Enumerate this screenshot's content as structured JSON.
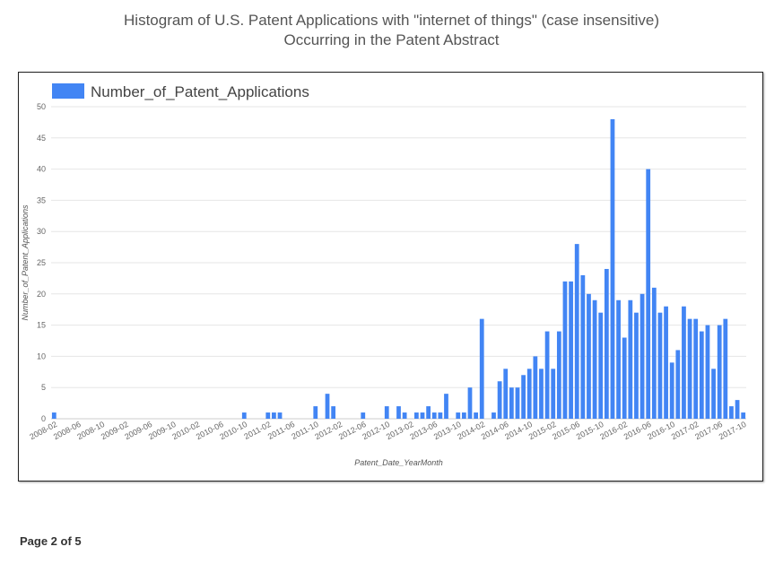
{
  "title": {
    "line1": "Histogram of U.S. Patent Applications with \"internet of things\" (case insensitive)",
    "line2": "Occurring in the Patent Abstract"
  },
  "footer": {
    "page_label": "Page 2 of 5"
  },
  "chart_data": {
    "type": "bar",
    "legend": [
      "Number_of_Patent_Applications"
    ],
    "legend_position": "top-left",
    "xlabel": "Patent_Date_YearMonth",
    "ylabel": "Number_of_Patent_Applications",
    "ylim": [
      0,
      50
    ],
    "yticks": [
      0,
      5,
      10,
      15,
      20,
      25,
      30,
      35,
      40,
      45,
      50
    ],
    "grid": true,
    "bar_color": "#4285f4",
    "categories": [
      "2008-02",
      "2008-03",
      "2008-04",
      "2008-05",
      "2008-06",
      "2008-07",
      "2008-08",
      "2008-09",
      "2008-10",
      "2008-11",
      "2008-12",
      "2009-01",
      "2009-02",
      "2009-03",
      "2009-04",
      "2009-05",
      "2009-06",
      "2009-07",
      "2009-08",
      "2009-09",
      "2009-10",
      "2009-11",
      "2009-12",
      "2010-01",
      "2010-02",
      "2010-03",
      "2010-04",
      "2010-05",
      "2010-06",
      "2010-07",
      "2010-08",
      "2010-09",
      "2010-10",
      "2010-11",
      "2010-12",
      "2011-01",
      "2011-02",
      "2011-03",
      "2011-04",
      "2011-05",
      "2011-06",
      "2011-07",
      "2011-08",
      "2011-09",
      "2011-10",
      "2011-11",
      "2011-12",
      "2012-01",
      "2012-02",
      "2012-03",
      "2012-04",
      "2012-05",
      "2012-06",
      "2012-07",
      "2012-08",
      "2012-09",
      "2012-10",
      "2012-11",
      "2012-12",
      "2013-01",
      "2013-02",
      "2013-03",
      "2013-04",
      "2013-05",
      "2013-06",
      "2013-07",
      "2013-08",
      "2013-09",
      "2013-10",
      "2013-11",
      "2013-12",
      "2014-01",
      "2014-02",
      "2014-03",
      "2014-04",
      "2014-05",
      "2014-06",
      "2014-07",
      "2014-08",
      "2014-09",
      "2014-10",
      "2014-11",
      "2014-12",
      "2015-01",
      "2015-02",
      "2015-03",
      "2015-04",
      "2015-05",
      "2015-06",
      "2015-07",
      "2015-08",
      "2015-09",
      "2015-10",
      "2015-11",
      "2015-12",
      "2016-01",
      "2016-02",
      "2016-03",
      "2016-04",
      "2016-05",
      "2016-06",
      "2016-07",
      "2016-08",
      "2016-09",
      "2016-10",
      "2016-11",
      "2016-12",
      "2017-01",
      "2017-02",
      "2017-03",
      "2017-04",
      "2017-05",
      "2017-06",
      "2017-07",
      "2017-08",
      "2017-09",
      "2017-10"
    ],
    "values": [
      1,
      0,
      0,
      0,
      0,
      0,
      0,
      0,
      0,
      0,
      0,
      0,
      0,
      0,
      0,
      0,
      0,
      0,
      0,
      0,
      0,
      0,
      0,
      0,
      0,
      0,
      0,
      0,
      0,
      0,
      0,
      0,
      1,
      0,
      0,
      0,
      1,
      1,
      1,
      0,
      0,
      0,
      0,
      0,
      2,
      0,
      4,
      2,
      0,
      0,
      0,
      0,
      1,
      0,
      0,
      0,
      2,
      0,
      2,
      1,
      0,
      1,
      1,
      2,
      1,
      1,
      4,
      0,
      1,
      1,
      5,
      1,
      16,
      0,
      1,
      6,
      8,
      5,
      5,
      7,
      8,
      10,
      8,
      14,
      8,
      14,
      22,
      22,
      28,
      23,
      20,
      19,
      17,
      24,
      48,
      19,
      13,
      19,
      17,
      20,
      40,
      21,
      17,
      18,
      9,
      11,
      18,
      16,
      16,
      14,
      15,
      8,
      15,
      16,
      2,
      3,
      1
    ],
    "xtick_labels": [
      "2008-02",
      "2008-06",
      "2008-10",
      "2009-02",
      "2009-06",
      "2009-10",
      "2010-02",
      "2010-06",
      "2010-10",
      "2011-02",
      "2011-06",
      "2011-10",
      "2012-02",
      "2012-06",
      "2012-10",
      "2013-02",
      "2013-06",
      "2013-10",
      "2014-02",
      "2014-06",
      "2014-10",
      "2015-02",
      "2015-06",
      "2015-10",
      "2016-02",
      "2016-06",
      "2016-10",
      "2017-02",
      "2017-06",
      "2017-10"
    ]
  }
}
